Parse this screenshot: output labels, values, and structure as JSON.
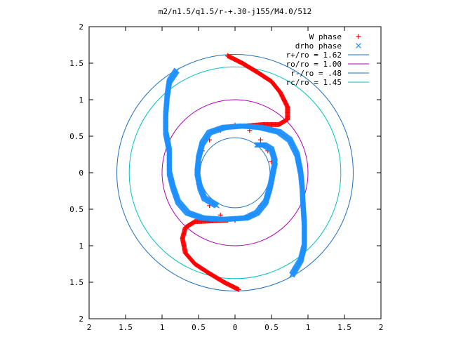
{
  "chart_data": {
    "type": "scatter",
    "title": "m2/n1.5/q1.5/r-+.30-j155/M4.0/512",
    "xlabel": "",
    "ylabel": "",
    "xlim": [
      -2,
      2
    ],
    "ylim": [
      -2,
      2
    ],
    "grid": false,
    "legend_position": "top-right",
    "x_ticks": [
      "2",
      "1.5",
      "1",
      "0.5",
      "0",
      "0.5",
      "1",
      "1.5",
      "2"
    ],
    "y_ticks": [
      "2",
      "1.5",
      "1",
      "0.5",
      "0",
      "0.5",
      "1",
      "1.5",
      "2"
    ],
    "circles": [
      {
        "name": "r+/ro = 1.62",
        "radius": 1.62,
        "color": "#1e6fbf"
      },
      {
        "name": "ro/ro = 1.00",
        "radius": 1.0,
        "color": "#b000b0"
      },
      {
        "name": "r-/ro = .48",
        "radius": 0.48,
        "color": "#1e6fbf"
      },
      {
        "name": "rc/ro = 1.45",
        "radius": 1.45,
        "color": "#00c0c0"
      }
    ],
    "series": [
      {
        "name": "W phase",
        "marker": "plus",
        "color": "#ff0000",
        "arms": [
          [
            [
              -0.1,
              1.6
            ],
            [
              0.1,
              1.5
            ],
            [
              0.3,
              1.38
            ],
            [
              0.5,
              1.25
            ],
            [
              0.62,
              1.1
            ],
            [
              0.72,
              0.9
            ],
            [
              0.72,
              0.73
            ],
            [
              0.6,
              0.66
            ],
            [
              0.4,
              0.66
            ],
            [
              0.15,
              0.64
            ]
          ],
          [
            [
              0.05,
              -1.6
            ],
            [
              -0.15,
              -1.5
            ],
            [
              -0.35,
              -1.38
            ],
            [
              -0.55,
              -1.25
            ],
            [
              -0.68,
              -1.1
            ],
            [
              -0.72,
              -0.9
            ],
            [
              -0.68,
              -0.75
            ],
            [
              -0.55,
              -0.67
            ],
            [
              -0.35,
              -0.66
            ],
            [
              -0.1,
              -0.65
            ]
          ]
        ],
        "inner": [
          [
            -0.5,
            -0.15
          ],
          [
            -0.52,
            0.0
          ],
          [
            -0.5,
            0.15
          ],
          [
            -0.45,
            0.3
          ],
          [
            -0.35,
            0.45
          ],
          [
            -0.2,
            0.58
          ],
          [
            0.0,
            0.65
          ],
          [
            0.5,
            -0.15
          ],
          [
            0.52,
            0.0
          ],
          [
            0.5,
            0.15
          ],
          [
            0.45,
            0.3
          ],
          [
            0.35,
            0.45
          ],
          [
            0.2,
            0.58
          ],
          [
            -0.45,
            -0.3
          ],
          [
            -0.35,
            -0.45
          ],
          [
            -0.2,
            -0.58
          ],
          [
            0.0,
            -0.65
          ],
          [
            0.45,
            -0.3
          ],
          [
            0.35,
            -0.45
          ],
          [
            0.2,
            -0.58
          ]
        ]
      },
      {
        "name": "drho phase",
        "marker": "cross",
        "color": "#1e90ff",
        "arms": [
          [
            [
              -0.8,
              1.4
            ],
            [
              -0.9,
              1.25
            ],
            [
              -0.93,
              1.05
            ],
            [
              -0.95,
              0.8
            ],
            [
              -0.95,
              0.55
            ],
            [
              -0.9,
              0.3
            ],
            [
              -0.9,
              0.0
            ],
            [
              -0.85,
              -0.2
            ],
            [
              -0.78,
              -0.4
            ],
            [
              -0.65,
              -0.55
            ],
            [
              -0.45,
              -0.62
            ],
            [
              -0.15,
              -0.64
            ],
            [
              0.15,
              -0.62
            ],
            [
              0.3,
              -0.55
            ],
            [
              0.42,
              -0.4
            ],
            [
              0.48,
              -0.2
            ],
            [
              0.52,
              0.0
            ],
            [
              0.55,
              0.15
            ],
            [
              0.5,
              0.32
            ],
            [
              0.4,
              0.38
            ],
            [
              0.3,
              0.38
            ]
          ],
          [
            [
              0.78,
              -1.4
            ],
            [
              0.9,
              -1.2
            ],
            [
              0.95,
              -1.0
            ],
            [
              0.95,
              -0.7
            ],
            [
              0.93,
              -0.4
            ],
            [
              0.92,
              -0.2
            ],
            [
              0.9,
              0.0
            ],
            [
              0.85,
              0.25
            ],
            [
              0.75,
              0.45
            ],
            [
              0.6,
              0.56
            ],
            [
              0.35,
              0.62
            ],
            [
              0.1,
              0.64
            ],
            [
              -0.15,
              0.62
            ],
            [
              -0.35,
              0.55
            ],
            [
              -0.45,
              0.4
            ],
            [
              -0.5,
              0.2
            ],
            [
              -0.52,
              0.0
            ],
            [
              -0.48,
              -0.2
            ],
            [
              -0.42,
              -0.35
            ],
            [
              -0.3,
              -0.42
            ],
            [
              -0.25,
              -0.45
            ]
          ]
        ]
      }
    ]
  }
}
